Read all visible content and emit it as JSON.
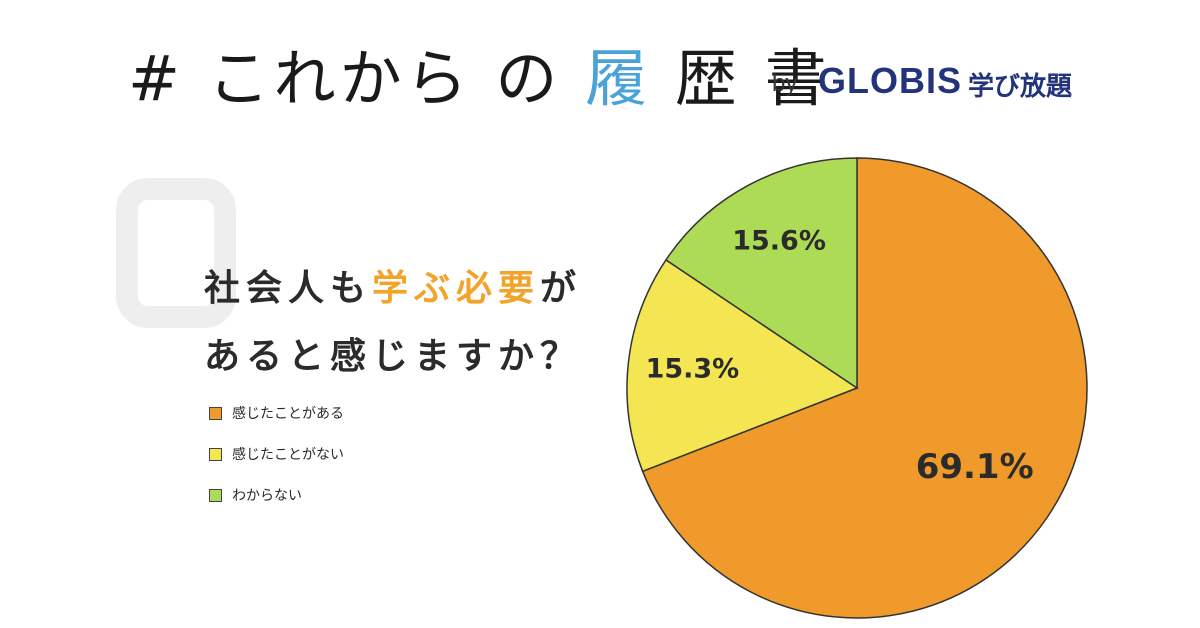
{
  "header": {
    "title_parts": [
      "#",
      "これから",
      "の",
      "履",
      "歴",
      "書"
    ],
    "by": "by",
    "logo": "GLOBIS",
    "logo_sub": "学び放題"
  },
  "question": {
    "line1_pre": "社会人も",
    "line1_highlight": "学ぶ必要",
    "line1_post": "が",
    "line2": "あると感じますか？"
  },
  "colors": {
    "orange": "#ef9a2a",
    "yellow": "#f4e653",
    "green": "#addb55",
    "highlight": "#f2a32a",
    "logo": "#23347a"
  },
  "chart_data": {
    "type": "pie",
    "categories": [
      "感じたことがある",
      "感じたことがない",
      "わからない"
    ],
    "values": [
      69.1,
      15.3,
      15.6
    ],
    "labels": [
      "69.1%",
      "15.3%",
      "15.6%"
    ],
    "colors": [
      "#ef9a2a",
      "#f4e653",
      "#addb55"
    ],
    "legend": "left"
  }
}
